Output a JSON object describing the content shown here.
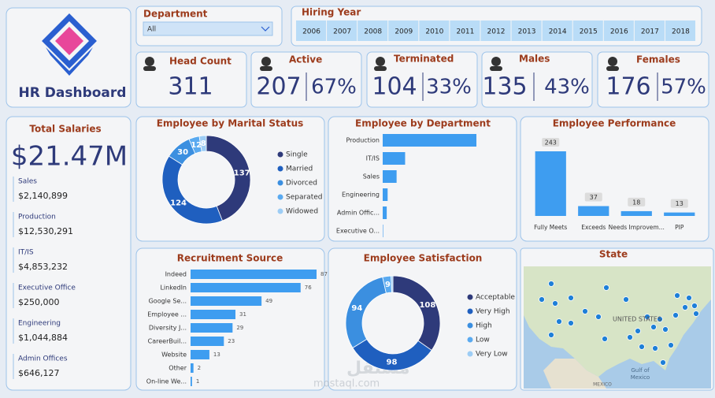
{
  "header": {
    "title": "HR Dashboard"
  },
  "filters": {
    "department": {
      "label": "Department",
      "value": "All"
    },
    "hiring_year": {
      "label": "Hiring Year",
      "years": [
        "2006",
        "2007",
        "2008",
        "2009",
        "2010",
        "2011",
        "2012",
        "2013",
        "2014",
        "2015",
        "2016",
        "2017",
        "2018"
      ]
    }
  },
  "kpis": [
    {
      "label": "Head Count",
      "value": "311"
    },
    {
      "label": "Active",
      "value": "207",
      "percent": "67%"
    },
    {
      "label": "Terminated",
      "value": "104",
      "percent": "33%"
    },
    {
      "label": "Males",
      "value": "135",
      "percent": "43%"
    },
    {
      "label": "Females",
      "value": "176",
      "percent": "57%"
    }
  ],
  "total_salaries": {
    "title": "Total Salaries",
    "value": "$21.47M",
    "items": [
      {
        "name": "Sales",
        "value": "$2,140,899"
      },
      {
        "name": "Production",
        "value": "$12,530,291"
      },
      {
        "name": "IT/IS",
        "value": "$4,853,232"
      },
      {
        "name": "Executive Office",
        "value": "$250,000"
      },
      {
        "name": "Engineering",
        "value": "$1,044,884"
      },
      {
        "name": "Admin Offices",
        "value": "$646,127"
      }
    ]
  },
  "chart_data": [
    {
      "type": "donut",
      "title": "Employee by Marital Status",
      "categories": [
        "Single",
        "Married",
        "Divorced",
        "Separated",
        "Widowed"
      ],
      "values": [
        137,
        124,
        30,
        12,
        8
      ],
      "colors": [
        "#2e3a7a",
        "#1f5fbf",
        "#3b8fe0",
        "#5aaaf0",
        "#9dcdf5"
      ],
      "legend": "right",
      "data_labels": true
    },
    {
      "type": "hbar",
      "title": "Employee by Department",
      "categories": [
        "Production",
        "IT/IS",
        "Sales",
        "Engineering",
        "Admin Offic...",
        "Executive O..."
      ],
      "values": [
        209,
        50,
        31,
        11,
        9,
        1
      ],
      "color": "#3e9df0",
      "data_labels": false
    },
    {
      "type": "bar",
      "title": "Employee Performance",
      "categories": [
        "Fully Meets",
        "Exceeds",
        "Needs Improvem...",
        "PIP"
      ],
      "values": [
        243,
        37,
        18,
        13
      ],
      "color": "#3e9df0",
      "data_labels": true
    },
    {
      "type": "hbar",
      "title": "Recruitment Source",
      "categories": [
        "Indeed",
        "LinkedIn",
        "Google Se...",
        "Employee ...",
        "Diversity J...",
        "CareerBuil...",
        "Website",
        "Other",
        "On-line We..."
      ],
      "values": [
        87,
        76,
        49,
        31,
        29,
        23,
        13,
        2,
        1
      ],
      "color": "#3e9df0",
      "data_labels": true
    },
    {
      "type": "donut",
      "title": "Employee Satisfaction",
      "categories": [
        "Acceptable",
        "Very High",
        "High",
        "Low",
        "Very Low"
      ],
      "values": [
        108,
        98,
        94,
        9,
        2
      ],
      "colors": [
        "#2e3a7a",
        "#1f5fbf",
        "#3b8fe0",
        "#5aaaf0",
        "#9dcdf5"
      ],
      "legend": "right",
      "data_labels": true
    }
  ],
  "map": {
    "title": "State",
    "labels": [
      "UNITED STATES",
      "Gulf of",
      "Mexico",
      "MEXICO"
    ]
  },
  "watermark": {
    "arabic": "مستقل",
    "latin": "mostaql.com"
  }
}
